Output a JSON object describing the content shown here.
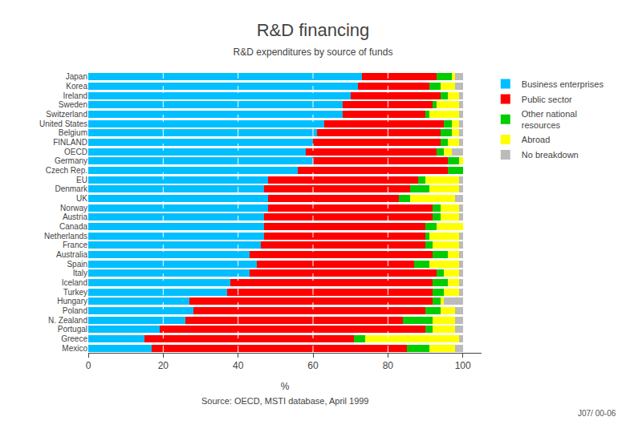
{
  "chart_data": {
    "type": "bar",
    "orientation": "horizontal",
    "stacked": true,
    "grid": true,
    "title": "R&D financing",
    "subtitle": "R&D expenditures by source of funds",
    "xlabel": "%",
    "annotations": [
      "Source: OECD, MSTI database, April 1999",
      "J07/ 00-06"
    ],
    "categories": [
      "Japan",
      "Korea",
      "Ireland",
      "Sweden",
      "Switzerland",
      "United States",
      "Belgium",
      "FINLAND",
      "OECD",
      "Germany",
      "Czech Rep.",
      "EU",
      "Denmark",
      "UK",
      "Norway",
      "Austria",
      "Canada",
      "Netherlands",
      "France",
      "Australia",
      "Spain",
      "Italy",
      "Iceland",
      "Turkey",
      "Hungary",
      "Poland",
      "N. Zealand",
      "Portugal",
      "Greece",
      "Mexico"
    ],
    "series": [
      {
        "name": "Business enterprises",
        "color": "#00BFFF",
        "values": [
          73,
          72,
          70,
          68,
          68,
          63,
          61,
          60,
          58,
          60,
          56,
          48,
          47,
          48,
          48,
          47,
          47,
          47,
          46,
          43,
          45,
          43,
          38,
          37,
          27,
          28,
          26,
          19,
          15,
          17
        ]
      },
      {
        "name": "Public sector",
        "color": "#FF0000",
        "values": [
          20,
          19,
          24,
          24,
          22,
          32,
          33,
          34,
          35,
          36,
          40,
          40,
          39,
          35,
          44,
          45,
          43,
          43,
          44,
          49,
          42,
          50,
          54,
          55,
          65,
          62,
          58,
          71,
          56,
          68
        ]
      },
      {
        "name": "Other national\nresources",
        "color": "#00CC00",
        "values": [
          4,
          3,
          2,
          1,
          1,
          2,
          3,
          2,
          2,
          3,
          4,
          2,
          5,
          3,
          2,
          2,
          3,
          1,
          2,
          4,
          4,
          2,
          4,
          3,
          2,
          4,
          8,
          2,
          3,
          6
        ]
      },
      {
        "name": "Abroad",
        "color": "#FFFF00",
        "values": [
          1,
          4,
          3,
          6,
          8,
          2,
          2,
          3,
          2,
          1,
          0,
          9,
          8,
          12,
          5,
          5,
          7,
          8,
          7,
          3,
          8,
          4,
          3,
          4,
          1,
          4,
          6,
          6,
          25,
          7
        ]
      },
      {
        "name": "No breakdown",
        "color": "#BBBBBB",
        "values": [
          2,
          2,
          1,
          1,
          1,
          1,
          1,
          1,
          3,
          0,
          0,
          1,
          1,
          2,
          1,
          1,
          0,
          1,
          1,
          1,
          1,
          1,
          1,
          1,
          5,
          2,
          2,
          2,
          1,
          2
        ]
      }
    ],
    "xlim": [
      0,
      105
    ],
    "xticks": [
      0,
      20,
      40,
      60,
      80,
      100
    ]
  }
}
